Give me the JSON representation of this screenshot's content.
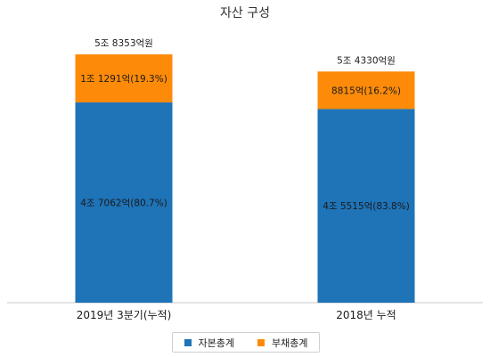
{
  "chart_data": {
    "type": "bar",
    "stacked": true,
    "title": "자산 구성",
    "xlabel": "",
    "ylabel": "",
    "ylim": [
      0,
      6
    ],
    "unit": "조원",
    "grid": false,
    "legend_position": "bottom",
    "categories": [
      "2019년 3분기(누적)",
      "2018년 누적"
    ],
    "totals": [
      5.8353,
      5.433
    ],
    "total_labels": [
      "5조 8353억원",
      "5조 4330억원"
    ],
    "series": [
      {
        "name": "자본총계",
        "color": "#1f73b7",
        "values": [
          4.7062,
          4.5515
        ],
        "labels": [
          "4조 7062억(80.7%)",
          "4조 5515억(83.8%)"
        ]
      },
      {
        "name": "부채총계",
        "color": "#fd8b09",
        "values": [
          1.1291,
          0.8815
        ],
        "labels": [
          "1조 1291억(19.3%)",
          "8815억(16.2%)"
        ]
      }
    ]
  }
}
